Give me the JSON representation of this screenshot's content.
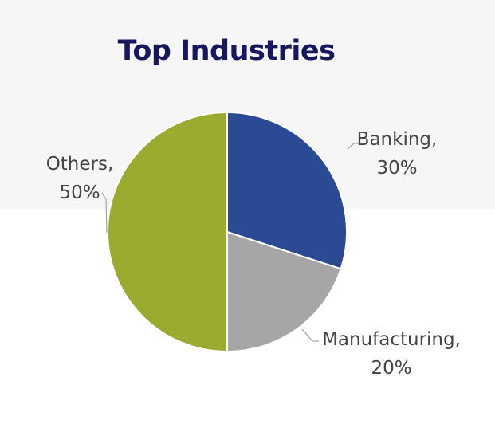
{
  "chart_data": {
    "type": "pie",
    "title": "Top Industries",
    "slices": [
      {
        "label": "Banking",
        "value": 30,
        "value_text": "30%",
        "color": "#2a4a94"
      },
      {
        "label": "Manufacturing",
        "value": 20,
        "value_text": "20%",
        "color": "#a6a6a6"
      },
      {
        "label": "Others",
        "value": 50,
        "value_text": "50%",
        "color": "#9aab2f"
      }
    ],
    "start_angle_deg": 0,
    "direction": "clockwise",
    "slice_border_color": "#ffffff",
    "label_text_color": "#444444",
    "leader_line_color": "#a6a6a6",
    "title_color": "#17175f"
  }
}
